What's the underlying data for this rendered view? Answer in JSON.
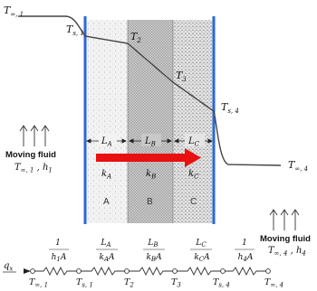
{
  "colors": {
    "wall_blue": "#2a6ad8",
    "heat_arrow": "#e81010",
    "profile": "#444444",
    "layer_a_fill": "#f2f2f2",
    "layer_b_fill": "#c9c9c9",
    "layer_c_fill": "#e4e4e4"
  },
  "labels": {
    "t_inf1_main": "T",
    "t_inf1_sub": "∞, 1",
    "ts1_main": "T",
    "ts1_sub": "s, 1",
    "t2_main": "T",
    "t2_sub": "2",
    "t3_main": "T",
    "t3_sub": "3",
    "ts4_main": "T",
    "ts4_sub": "s, 4",
    "t_inf4_main": "T",
    "t_inf4_sub": "∞, 4"
  },
  "layers": [
    {
      "name": "A",
      "thickness_main": "L",
      "thickness_sub": "A",
      "k_main": "k",
      "k_sub": "A"
    },
    {
      "name": "B",
      "thickness_main": "L",
      "thickness_sub": "B",
      "k_main": "k",
      "k_sub": "B"
    },
    {
      "name": "C",
      "thickness_main": "L",
      "thickness_sub": "C",
      "k_main": "k",
      "k_sub": "C"
    }
  ],
  "fluid_left": {
    "title": "Moving fluid",
    "temp_main": "T",
    "temp_sub": "∞, 1",
    "h_main": "h",
    "h_sub": "1"
  },
  "fluid_right": {
    "title": "Moving fluid",
    "temp_main": "T",
    "temp_sub": "∞, 4",
    "h_main": "h",
    "h_sub": "4"
  },
  "circuit": {
    "heat_main": "q",
    "heat_sub": "x",
    "resistances": [
      {
        "num": "1",
        "den_main": "h",
        "den_sub": "1",
        "den_tail": "A"
      },
      {
        "num_main": "L",
        "num_sub": "A",
        "den_main": "k",
        "den_sub": "A",
        "den_tail": "A"
      },
      {
        "num_main": "L",
        "num_sub": "B",
        "den_main": "k",
        "den_sub": "B",
        "den_tail": "A"
      },
      {
        "num_main": "L",
        "num_sub": "C",
        "den_main": "k",
        "den_sub": "C",
        "den_tail": "A"
      },
      {
        "num": "1",
        "den_main": "h",
        "den_sub": "4",
        "den_tail": "A"
      }
    ],
    "nodes": [
      {
        "main": "T",
        "sub": "∞, 1"
      },
      {
        "main": "T",
        "sub": "s, 1"
      },
      {
        "main": "T",
        "sub": "2"
      },
      {
        "main": "T",
        "sub": "3"
      },
      {
        "main": "T",
        "sub": "s, 4"
      },
      {
        "main": "T",
        "sub": "∞, 4"
      }
    ]
  }
}
